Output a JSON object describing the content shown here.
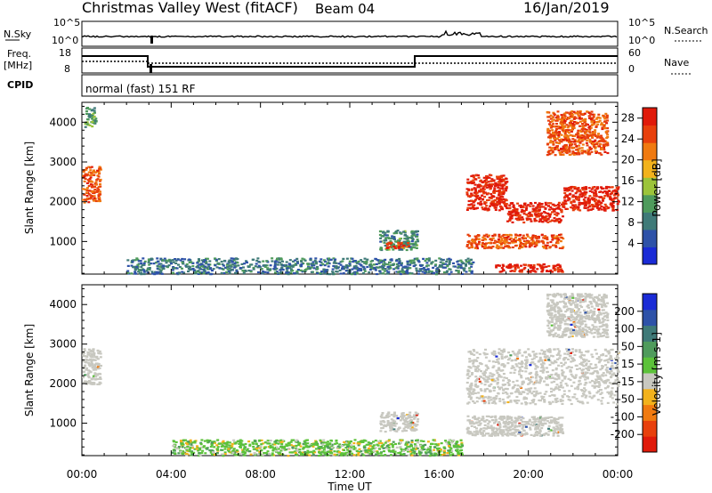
{
  "header": {
    "title": "Christmas Valley West (fitACF)",
    "beam": "Beam 04",
    "date": "16/Jan/2019"
  },
  "strips": {
    "nsky_label": "N.Sky",
    "nsky_ticks": [
      "10^5",
      "10^0"
    ],
    "nsearch_label": "N.Search",
    "nsearch_ticks": [
      "10^5",
      "10^0"
    ],
    "freq_label_1": "Freq.",
    "freq_label_2": "[MHz]",
    "freq_ticks": [
      "18",
      "8"
    ],
    "nave_label": "Nave",
    "nave_ticks": [
      "60",
      "0"
    ],
    "cpid_label": "CPID",
    "cpid_text": "normal (fast) 151 RF"
  },
  "colors": {
    "power_scale": [
      "#1a2bd6",
      "#2e52a8",
      "#3f7a78",
      "#4f9b5c",
      "#9cc43a",
      "#f2b21c",
      "#f07a10",
      "#e8400c",
      "#e01a0a"
    ],
    "velocity_scale": [
      "#1a2bd6",
      "#2e52a8",
      "#3f7a78",
      "#4f9b5c",
      "#5cc23a",
      "#c8c8c0",
      "#f2b21c",
      "#f07a10",
      "#e8400c",
      "#e01a0a"
    ],
    "ground_scatter": "#c8c8c0"
  },
  "chart_data": [
    {
      "type": "heatmap",
      "panel": "power",
      "xlabel": "Time UT",
      "ylabel": "Slant Range [km]",
      "x_ticks": [
        "00:00",
        "04:00",
        "08:00",
        "12:00",
        "16:00",
        "20:00",
        "00:00"
      ],
      "x_range_hours": [
        0,
        24
      ],
      "y_ticks": [
        1000,
        2000,
        3000,
        4000
      ],
      "ylim": [
        180,
        4500
      ],
      "colorbar_label": "Power [dB]",
      "colorbar_ticks": [
        "4",
        "8",
        "12",
        "16",
        "20",
        "24",
        "28"
      ],
      "colorbar_range": [
        0,
        30
      ],
      "regions": [
        {
          "t": [
            0.0,
            0.8
          ],
          "r": [
            2000,
            2900
          ],
          "level": 24
        },
        {
          "t": [
            0.1,
            0.6
          ],
          "r": [
            3900,
            4400
          ],
          "level": 12
        },
        {
          "t": [
            13.3,
            15.0
          ],
          "r": [
            800,
            1300
          ],
          "level": 10
        },
        {
          "t": [
            13.6,
            14.6
          ],
          "r": [
            850,
            1000
          ],
          "level": 26
        },
        {
          "t": [
            17.2,
            19.0
          ],
          "r": [
            1800,
            2700
          ],
          "level": 28
        },
        {
          "t": [
            19.0,
            21.5
          ],
          "r": [
            1500,
            2000
          ],
          "level": 28
        },
        {
          "t": [
            21.5,
            24.0
          ],
          "r": [
            1800,
            2400
          ],
          "level": 28
        },
        {
          "t": [
            17.2,
            21.5
          ],
          "r": [
            850,
            1200
          ],
          "level": 24
        },
        {
          "t": [
            20.8,
            23.5
          ],
          "r": [
            3200,
            4300
          ],
          "level": 24
        },
        {
          "t": [
            2.0,
            17.5
          ],
          "r": [
            200,
            600
          ],
          "level": 8
        },
        {
          "t": [
            18.5,
            21.5
          ],
          "r": [
            250,
            450
          ],
          "level": 28
        }
      ]
    },
    {
      "type": "heatmap",
      "panel": "velocity",
      "xlabel": "Time UT",
      "ylabel": "Slant Range [km]",
      "x_ticks": [
        "00:00",
        "04:00",
        "08:00",
        "12:00",
        "16:00",
        "20:00",
        "00:00"
      ],
      "x_range_hours": [
        0,
        24
      ],
      "y_ticks": [
        1000,
        2000,
        3000,
        4000
      ],
      "ylim": [
        180,
        4500
      ],
      "colorbar_label": "Velocity [m s-1]",
      "colorbar_ticks": [
        "200",
        "100",
        "50",
        "15",
        "-15",
        "-50",
        "-100",
        "-200"
      ],
      "colorbar_range": [
        -250,
        250
      ],
      "regions": [
        {
          "t": [
            0.0,
            0.8
          ],
          "r": [
            2000,
            2900
          ],
          "kind": "ground"
        },
        {
          "t": [
            13.3,
            15.0
          ],
          "r": [
            800,
            1300
          ],
          "kind": "ground"
        },
        {
          "t": [
            17.2,
            24.0
          ],
          "r": [
            1500,
            2900
          ],
          "kind": "ground"
        },
        {
          "t": [
            17.2,
            21.5
          ],
          "r": [
            700,
            1200
          ],
          "kind": "ground"
        },
        {
          "t": [
            20.8,
            23.5
          ],
          "r": [
            3200,
            4300
          ],
          "kind": "ground"
        },
        {
          "t": [
            4.0,
            17.0
          ],
          "r": [
            200,
            600
          ],
          "kind": "velocity",
          "v": 40
        }
      ]
    }
  ]
}
